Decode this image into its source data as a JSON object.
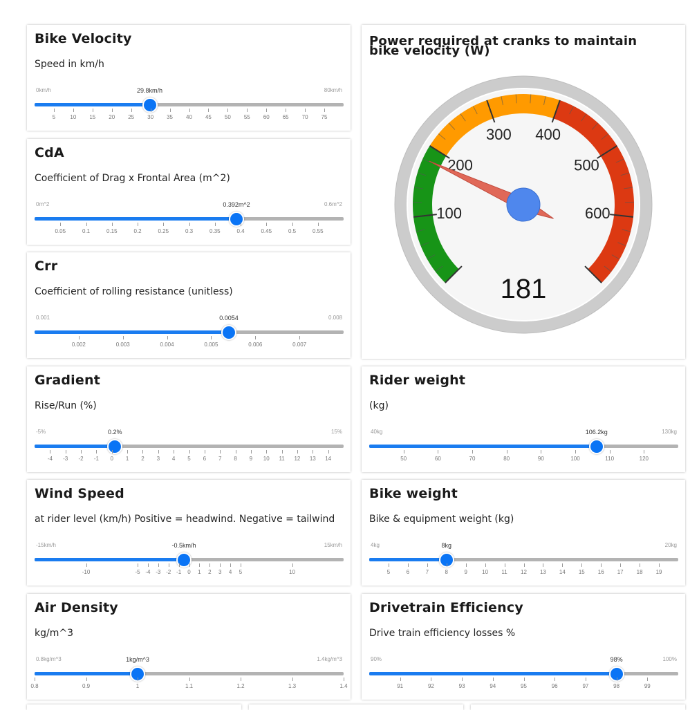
{
  "gauge": {
    "title": "Power required at cranks to maintain bike velocity (W)",
    "value": 181,
    "value_text": "181",
    "min": 0,
    "max": 700,
    "major_labels": [
      "100",
      "200",
      "300",
      "400",
      "500",
      "600"
    ],
    "colors": {
      "green": "#179417",
      "orange": "#ff9a00",
      "red": "#dc3912",
      "needle": "#e06858",
      "hub": "#4f87ed",
      "rim": "#cccccc",
      "face": "#f6f6f6"
    }
  },
  "sliders": [
    {
      "id": "bike-velocity",
      "title": "Bike Velocity",
      "description": "Speed in km/h",
      "min_label": "0km/h",
      "max_label": "80km/h",
      "value_label": "29.8km/h",
      "min": 0,
      "max": 80,
      "value": 29.8,
      "ticks": [
        5,
        10,
        15,
        20,
        25,
        30,
        35,
        40,
        45,
        50,
        55,
        60,
        65,
        70,
        75
      ],
      "tick_labels": [
        "5",
        "10",
        "15",
        "20",
        "25",
        "30",
        "35",
        "40",
        "45",
        "50",
        "55",
        "60",
        "65",
        "70",
        "75"
      ]
    },
    {
      "id": "cda",
      "title": "CdA",
      "description": "Coefficient of Drag x Frontal Area (m^2)",
      "min_label": "0m^2",
      "max_label": "0.6m^2",
      "value_label": "0.392m^2",
      "min": 0,
      "max": 0.6,
      "value": 0.392,
      "ticks": [
        0.05,
        0.1,
        0.15,
        0.2,
        0.25,
        0.3,
        0.35,
        0.4,
        0.45,
        0.5,
        0.55
      ],
      "tick_labels": [
        "0.05",
        "0.1",
        "0.15",
        "0.2",
        "0.25",
        "0.3",
        "0.35",
        "0.4",
        "0.45",
        "0.5",
        "0.55"
      ]
    },
    {
      "id": "crr",
      "title": "Crr",
      "description": "Coefficient of rolling resistance (unitless)",
      "min_label": "0.001",
      "max_label": "0.008",
      "value_label": "0.0054",
      "min": 0.001,
      "max": 0.008,
      "value": 0.0054,
      "ticks": [
        0.002,
        0.003,
        0.004,
        0.005,
        0.006,
        0.007
      ],
      "tick_labels": [
        "0.002",
        "0.003",
        "0.004",
        "0.005",
        "0.006",
        "0.007"
      ]
    },
    {
      "id": "gradient",
      "title": "Gradient",
      "description": "Rise/Run (%)",
      "min_label": "-5%",
      "max_label": "15%",
      "value_label": "0.2%",
      "min": -5,
      "max": 15,
      "value": 0.2,
      "ticks": [
        -4,
        -3,
        -2,
        -1,
        0,
        1,
        2,
        3,
        4,
        5,
        6,
        7,
        8,
        9,
        10,
        11,
        12,
        13,
        14
      ],
      "tick_labels": [
        "-4",
        "-3",
        "-2",
        "-1",
        "0",
        "1",
        "2",
        "3",
        "4",
        "5",
        "6",
        "7",
        "8",
        "9",
        "10",
        "11",
        "12",
        "13",
        "14"
      ]
    },
    {
      "id": "rider-weight",
      "title": "Rider weight",
      "description": "(kg)",
      "min_label": "40kg",
      "max_label": "130kg",
      "value_label": "106.2kg",
      "min": 40,
      "max": 130,
      "value": 106.2,
      "ticks": [
        50,
        60,
        70,
        80,
        90,
        100,
        110,
        120
      ],
      "tick_labels": [
        "50",
        "60",
        "70",
        "80",
        "90",
        "100",
        "110",
        "120"
      ]
    },
    {
      "id": "wind-speed",
      "title": "Wind Speed",
      "description": "at rider level (km/h) Positive = headwind. Negative = tailwind",
      "min_label": "-15km/h",
      "max_label": "15km/h",
      "value_label": "-0.5km/h",
      "min": -15,
      "max": 15,
      "value": -0.5,
      "ticks": [
        -10,
        -5,
        -4,
        -3,
        -2,
        -1,
        0,
        1,
        2,
        3,
        4,
        5,
        10
      ],
      "tick_labels": [
        "-10",
        "-5",
        "-4",
        "-3",
        "-2",
        "-1",
        "0",
        "1",
        "2",
        "3",
        "4",
        "5",
        "10"
      ]
    },
    {
      "id": "bike-weight",
      "title": "Bike weight",
      "description": "Bike & equipment weight (kg)",
      "min_label": "4kg",
      "max_label": "20kg",
      "value_label": "8kg",
      "min": 4,
      "max": 20,
      "value": 8,
      "ticks": [
        5,
        6,
        7,
        8,
        9,
        10,
        11,
        12,
        13,
        14,
        15,
        16,
        17,
        18,
        19
      ],
      "tick_labels": [
        "5",
        "6",
        "7",
        "8",
        "9",
        "10",
        "11",
        "12",
        "13",
        "14",
        "15",
        "16",
        "17",
        "18",
        "19"
      ]
    },
    {
      "id": "air-density",
      "title": "Air Density",
      "description": "kg/m^3",
      "min_label": "0.8kg/m^3",
      "max_label": "1.4kg/m^3",
      "value_label": "1kg/m^3",
      "min": 0.8,
      "max": 1.4,
      "value": 1.0,
      "ticks": [
        0.8,
        0.9,
        1,
        1.1,
        1.2,
        1.3,
        1.4
      ],
      "tick_labels": [
        "0.8",
        "0.9",
        "1",
        "1.1",
        "1.2",
        "1.3",
        "1.4"
      ]
    },
    {
      "id": "drivetrain-efficiency",
      "title": "Drivetrain Efficiency",
      "description": "Drive train efficiency losses %",
      "min_label": "90%",
      "max_label": "100%",
      "value_label": "98%",
      "min": 90,
      "max": 100,
      "value": 98,
      "ticks": [
        91,
        92,
        93,
        94,
        95,
        96,
        97,
        98,
        99
      ],
      "tick_labels": [
        "91",
        "92",
        "93",
        "94",
        "95",
        "96",
        "97",
        "98",
        "99"
      ]
    }
  ]
}
